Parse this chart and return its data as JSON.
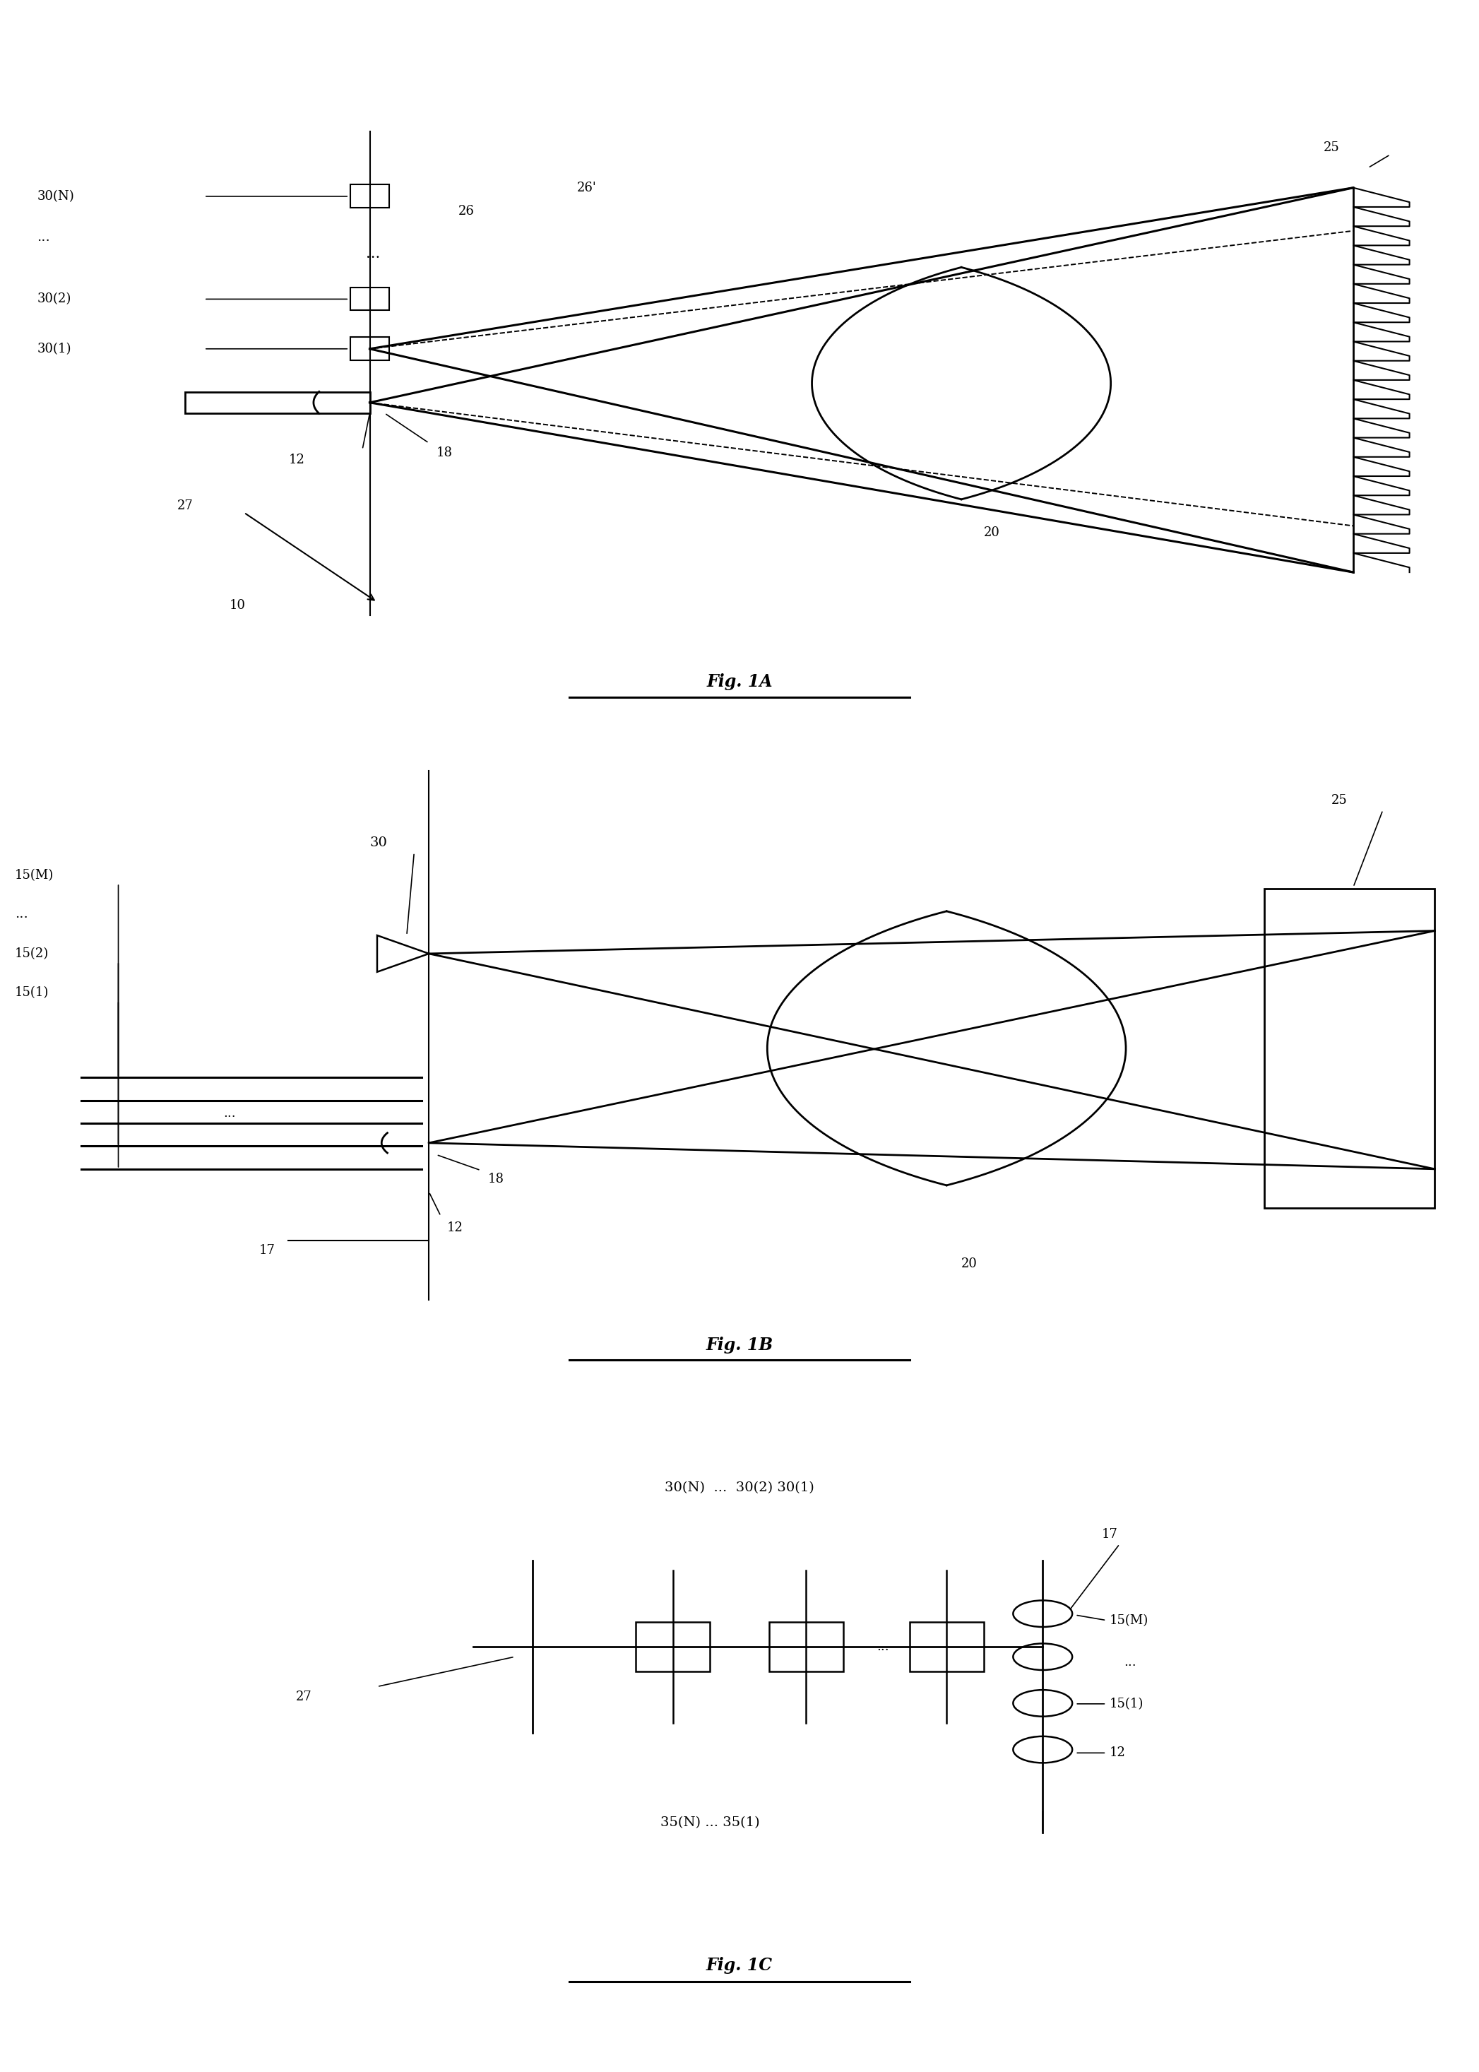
{
  "bg_color": "#ffffff",
  "line_color": "#000000",
  "fig_width": 20.94,
  "fig_height": 29.33,
  "fig1A": {
    "title": "Fig. 1A",
    "labels": {
      "30N": "30(N)",
      "dots": "...",
      "30_2": "30(2)",
      "30_1": "30(1)",
      "26": "26",
      "26p": "26'",
      "25": "25",
      "18": "18",
      "20": "20",
      "12": "12",
      "27": "27",
      "10": "10"
    }
  },
  "fig1B": {
    "title": "Fig. 1B",
    "labels": {
      "30": "30",
      "15M": "15(M)",
      "dots": "...",
      "15_2": "15(2)",
      "15_1": "15(1)",
      "25": "25",
      "18": "18",
      "20": "20",
      "12": "12",
      "17": "17"
    }
  },
  "fig1C": {
    "title": "Fig. 1C",
    "labels": {
      "top": "30(N)  ...  30(2) 30(1)",
      "35bot": "35(N) ... 35(1)",
      "15M": "15(M)",
      "dots": "...",
      "15_1": "15(1)",
      "17": "17",
      "12": "12",
      "27": "27"
    }
  }
}
